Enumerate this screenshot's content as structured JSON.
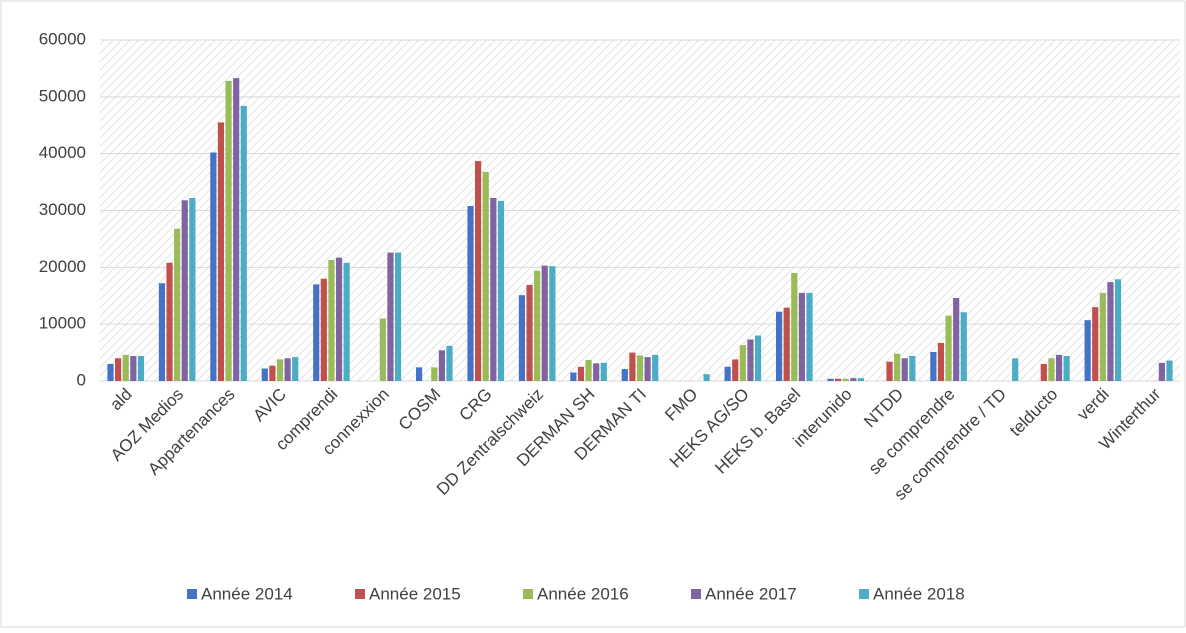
{
  "chart_data": {
    "type": "bar",
    "categories": [
      "ald",
      "AOZ Medios",
      "Appartenances",
      "AVIC",
      "comprendi",
      "connexxion",
      "COSM",
      "CRG",
      "DD Zentralschweiz",
      "DERMAN SH",
      "DERMAN TI",
      "FMO",
      "HEKS AG/SO",
      "HEKS b. Basel",
      "interunido",
      "NTDD",
      "se comprendre",
      "se comprendre / TD",
      "telducto",
      "verdi",
      "Winterthur"
    ],
    "series": [
      {
        "name": "Année 2014",
        "color": "#4472c4",
        "values": [
          3000,
          17200,
          40200,
          2200,
          17000,
          null,
          2400,
          30800,
          15100,
          1500,
          2100,
          null,
          2500,
          12200,
          400,
          null,
          5100,
          null,
          null,
          10700,
          null
        ]
      },
      {
        "name": "Année 2015",
        "color": "#c0504d",
        "values": [
          4000,
          20800,
          45500,
          2700,
          18000,
          null,
          null,
          38700,
          16900,
          2500,
          5000,
          null,
          3800,
          12900,
          400,
          3400,
          6700,
          null,
          3000,
          13000,
          null
        ]
      },
      {
        "name": "Année 2016",
        "color": "#9bbb59",
        "values": [
          4600,
          26800,
          52800,
          3800,
          21300,
          11000,
          2400,
          36800,
          19400,
          3700,
          4500,
          null,
          6300,
          19000,
          400,
          4800,
          11500,
          null,
          4000,
          15500,
          null
        ]
      },
      {
        "name": "Année 2017",
        "color": "#8064a2",
        "values": [
          4400,
          31800,
          53300,
          4000,
          21700,
          22600,
          5400,
          32200,
          20300,
          3100,
          4200,
          null,
          7300,
          15500,
          500,
          4000,
          14600,
          null,
          4600,
          17400,
          3200
        ]
      },
      {
        "name": "Année 2018",
        "color": "#4bacc6",
        "values": [
          4400,
          32200,
          48400,
          4200,
          20800,
          22600,
          6200,
          31700,
          20200,
          3200,
          4600,
          1200,
          8000,
          15500,
          500,
          4400,
          12100,
          4000,
          4400,
          17900,
          3600
        ]
      }
    ],
    "ylim": [
      0,
      60000
    ],
    "yticks": [
      0,
      10000,
      20000,
      30000,
      40000,
      50000,
      60000
    ],
    "grid": true,
    "legend": "bottom"
  }
}
